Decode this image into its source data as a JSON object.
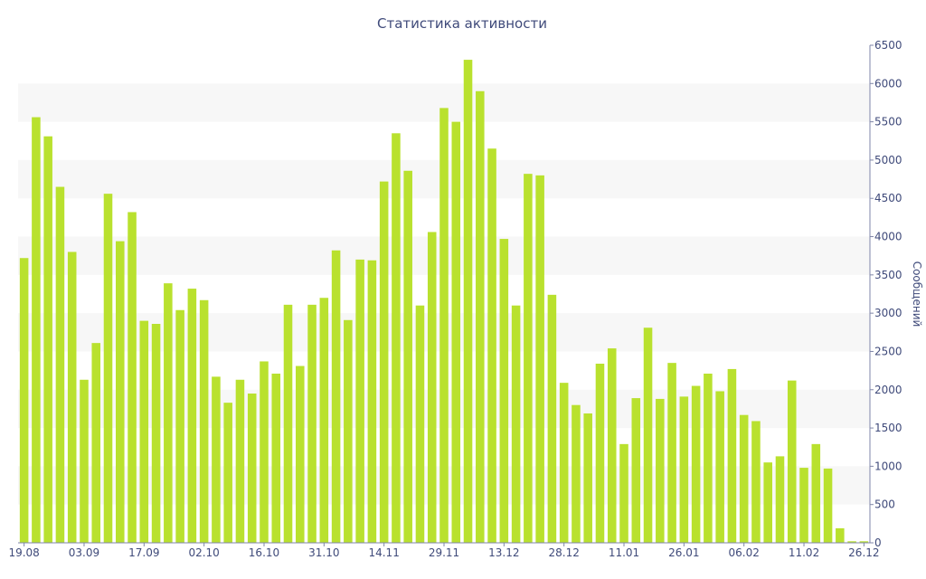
{
  "colors": {
    "bar": "#b9e12e",
    "band": "#f7f7f7",
    "axis": "#7f86a8",
    "text": "#3f4a7a"
  },
  "chart_data": {
    "type": "bar",
    "title": "Статистика активности",
    "ylabel": "Сообщений",
    "xlabel": "",
    "ylim": [
      0,
      6500
    ],
    "y_axis_side": "right",
    "y_ticks": [
      0,
      500,
      1000,
      1500,
      2000,
      2500,
      3000,
      3500,
      4000,
      4500,
      5000,
      5500,
      6000,
      6500
    ],
    "grid": "alternating horizontal bands",
    "x_tick_labels": [
      {
        "index": 0,
        "label": "19.08"
      },
      {
        "index": 5,
        "label": "03.09"
      },
      {
        "index": 10,
        "label": "17.09"
      },
      {
        "index": 15,
        "label": "02.10"
      },
      {
        "index": 20,
        "label": "16.10"
      },
      {
        "index": 25,
        "label": "31.10"
      },
      {
        "index": 30,
        "label": "14.11"
      },
      {
        "index": 35,
        "label": "29.11"
      },
      {
        "index": 40,
        "label": "13.12"
      },
      {
        "index": 45,
        "label": "28.12"
      },
      {
        "index": 50,
        "label": "11.01"
      },
      {
        "index": 55,
        "label": "26.01"
      },
      {
        "index": 60,
        "label": "06.02"
      },
      {
        "index": 65,
        "label": "11.02"
      },
      {
        "index": 70,
        "label": "26.12"
      }
    ],
    "values": [
      3720,
      5560,
      5310,
      4650,
      3800,
      2130,
      2610,
      4560,
      3940,
      4320,
      2900,
      2860,
      3390,
      3040,
      3320,
      3170,
      2170,
      1830,
      2130,
      1950,
      2370,
      2210,
      3110,
      2310,
      3110,
      3200,
      3820,
      2910,
      3700,
      3690,
      4720,
      5350,
      4860,
      3100,
      4060,
      5680,
      5500,
      6310,
      5900,
      5150,
      3970,
      3100,
      4820,
      4800,
      3240,
      2090,
      1800,
      1690,
      2340,
      2540,
      1290,
      1890,
      2810,
      1880,
      2350,
      1910,
      2050,
      2210,
      1980,
      2270,
      1670,
      1590,
      1050,
      1130,
      2120,
      980,
      1290,
      970,
      190,
      20,
      20
    ]
  }
}
